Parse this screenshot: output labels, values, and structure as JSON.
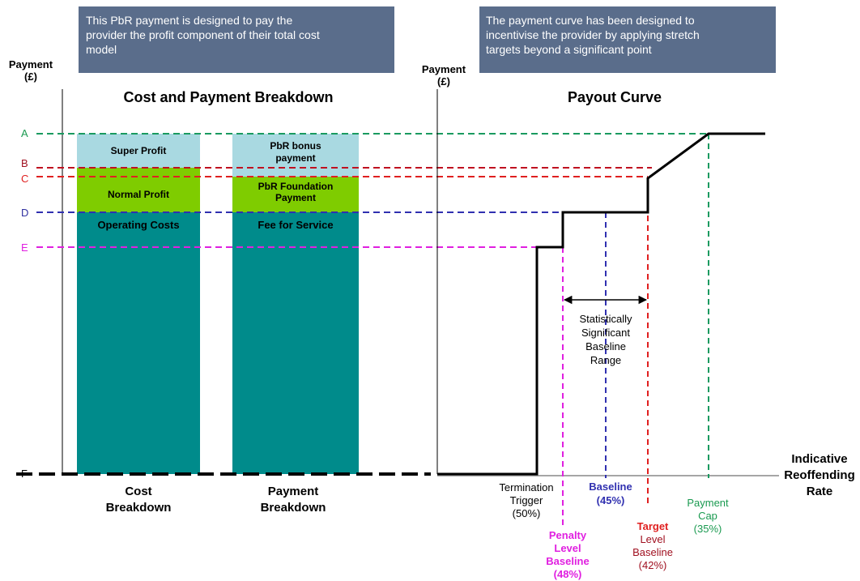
{
  "callouts": [
    {
      "lines": [
        "This PbR payment is designed to pay the",
        "provider the profit component of their total cost",
        "model"
      ]
    },
    {
      "lines": [
        "The payment curve has been designed to",
        "incentivise the provider by applying stretch",
        "targets beyond a significant point"
      ]
    }
  ],
  "left_panel": {
    "y_axis_label": [
      "Payment",
      "(£)"
    ],
    "title": "Cost and Payment Breakdown",
    "levels": [
      "A",
      "B",
      "C",
      "D",
      "E",
      "F"
    ],
    "bars": [
      {
        "segments": [
          "Super Profit",
          "Normal Profit",
          "Operating Costs"
        ],
        "label": [
          "Cost",
          "Breakdown"
        ]
      },
      {
        "segments": [
          [
            "PbR bonus",
            "payment"
          ],
          [
            "PbR Foundation",
            "Payment"
          ],
          "Fee for Service"
        ],
        "label": [
          "Payment",
          "Breakdown"
        ]
      }
    ]
  },
  "right_panel": {
    "y_axis_label": [
      "Payment",
      "(£)"
    ],
    "title": "Payout Curve",
    "x_axis_label": [
      "Indicative",
      "Reoffending",
      "Rate"
    ],
    "range_label": [
      "Statistically",
      "Significant",
      "Baseline",
      "Range"
    ],
    "markers": {
      "termination": [
        "Termination",
        "Trigger",
        "(50%)"
      ],
      "baseline": [
        "Baseline",
        "(45%)"
      ],
      "penalty": [
        "Penalty",
        "Level",
        "Baseline",
        "(48%)"
      ],
      "target": [
        "Target",
        "Level",
        "Baseline",
        "(42%)"
      ],
      "cap": [
        "Payment",
        "Cap",
        "(35%)"
      ]
    }
  }
}
